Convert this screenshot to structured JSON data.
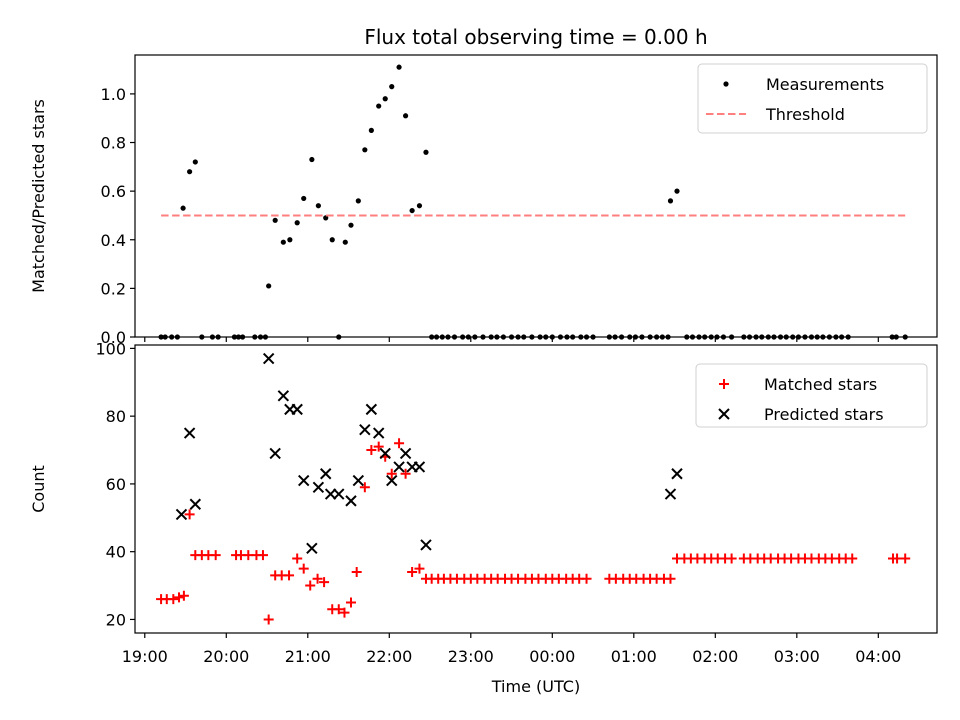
{
  "chart_data": [
    {
      "type": "scatter",
      "title": "Flux total observing time = 0.00 h",
      "ylabel": "Matched/Predicted stars",
      "xlabel": "",
      "xlim": [
        18.88,
        28.72
      ],
      "ylim": [
        0,
        1.16
      ],
      "x_unit": "hours after 00:00 of first night (UTC)",
      "yticks": [
        0.0,
        0.2,
        0.4,
        0.6,
        0.8,
        1.0
      ],
      "ytick_labels": [
        "0.0",
        "0.2",
        "0.4",
        "0.6",
        "0.8",
        "1.0"
      ],
      "legend_position": "upper-right",
      "series": [
        {
          "name": "Measurements",
          "marker": "dot",
          "color": "#000000",
          "points": [
            [
              19.2,
              0
            ],
            [
              19.25,
              0
            ],
            [
              19.33,
              0
            ],
            [
              19.4,
              0
            ],
            [
              19.47,
              0.53
            ],
            [
              19.55,
              0.68
            ],
            [
              19.62,
              0.72
            ],
            [
              19.7,
              0
            ],
            [
              19.83,
              0
            ],
            [
              19.9,
              0
            ],
            [
              20.1,
              0
            ],
            [
              20.15,
              0
            ],
            [
              20.2,
              0
            ],
            [
              20.35,
              0
            ],
            [
              20.42,
              0
            ],
            [
              20.48,
              0
            ],
            [
              20.52,
              0.21
            ],
            [
              20.6,
              0.48
            ],
            [
              20.7,
              0.39
            ],
            [
              20.78,
              0.4
            ],
            [
              20.87,
              0.47
            ],
            [
              20.95,
              0.57
            ],
            [
              21.05,
              0.73
            ],
            [
              21.13,
              0.54
            ],
            [
              21.22,
              0.49
            ],
            [
              21.3,
              0.4
            ],
            [
              21.38,
              0
            ],
            [
              21.46,
              0.39
            ],
            [
              21.53,
              0.46
            ],
            [
              21.62,
              0.56
            ],
            [
              21.7,
              0.77
            ],
            [
              21.78,
              0.85
            ],
            [
              21.87,
              0.95
            ],
            [
              21.95,
              0.98
            ],
            [
              22.03,
              1.03
            ],
            [
              22.12,
              1.11
            ],
            [
              22.2,
              0.91
            ],
            [
              22.28,
              0.52
            ],
            [
              22.37,
              0.54
            ],
            [
              22.45,
              0.76
            ],
            [
              22.52,
              0
            ],
            [
              22.58,
              0
            ],
            [
              22.65,
              0
            ],
            [
              22.72,
              0
            ],
            [
              22.8,
              0
            ],
            [
              22.9,
              0
            ],
            [
              22.97,
              0
            ],
            [
              23.05,
              0
            ],
            [
              23.15,
              0
            ],
            [
              23.25,
              0
            ],
            [
              23.32,
              0
            ],
            [
              23.4,
              0
            ],
            [
              23.5,
              0
            ],
            [
              23.58,
              0
            ],
            [
              23.65,
              0
            ],
            [
              23.75,
              0
            ],
            [
              23.85,
              0
            ],
            [
              23.92,
              0
            ],
            [
              24.0,
              0
            ],
            [
              24.1,
              0
            ],
            [
              24.18,
              0
            ],
            [
              24.25,
              0
            ],
            [
              24.35,
              0
            ],
            [
              24.42,
              0
            ],
            [
              24.5,
              0
            ],
            [
              24.7,
              0
            ],
            [
              24.77,
              0
            ],
            [
              24.85,
              0
            ],
            [
              24.95,
              0
            ],
            [
              25.02,
              0
            ],
            [
              25.1,
              0
            ],
            [
              25.2,
              0
            ],
            [
              25.28,
              0
            ],
            [
              25.35,
              0
            ],
            [
              25.42,
              0
            ],
            [
              25.45,
              0.56
            ],
            [
              25.53,
              0.6
            ],
            [
              25.65,
              0
            ],
            [
              25.72,
              0
            ],
            [
              25.8,
              0
            ],
            [
              25.87,
              0
            ],
            [
              25.95,
              0
            ],
            [
              26.02,
              0
            ],
            [
              26.1,
              0
            ],
            [
              26.2,
              0
            ],
            [
              26.35,
              0
            ],
            [
              26.42,
              0
            ],
            [
              26.5,
              0
            ],
            [
              26.57,
              0
            ],
            [
              26.65,
              0
            ],
            [
              26.72,
              0
            ],
            [
              26.8,
              0
            ],
            [
              26.87,
              0
            ],
            [
              26.95,
              0
            ],
            [
              27.02,
              0
            ],
            [
              27.1,
              0
            ],
            [
              27.18,
              0
            ],
            [
              27.25,
              0
            ],
            [
              27.32,
              0
            ],
            [
              27.4,
              0
            ],
            [
              27.48,
              0
            ],
            [
              27.55,
              0
            ],
            [
              27.63,
              0
            ],
            [
              28.17,
              0
            ],
            [
              28.22,
              0
            ],
            [
              28.33,
              0
            ]
          ]
        },
        {
          "name": "Threshold",
          "marker": "dashed-line",
          "color": "#ff7f7f",
          "points": [
            [
              19.2,
              0.5
            ],
            [
              28.33,
              0.5
            ]
          ]
        }
      ]
    },
    {
      "type": "scatter",
      "title": "",
      "ylabel": "Count",
      "xlabel": "Time (UTC)",
      "xlim": [
        18.88,
        28.72
      ],
      "ylim": [
        16,
        101
      ],
      "x_unit": "hours after 00:00 of first night (UTC)",
      "xticks": [
        19,
        20,
        21,
        22,
        23,
        24,
        25,
        26,
        27,
        28
      ],
      "xtick_labels": [
        "19:00",
        "20:00",
        "21:00",
        "22:00",
        "23:00",
        "00:00",
        "01:00",
        "02:00",
        "03:00",
        "04:00"
      ],
      "yticks": [
        20,
        40,
        60,
        80,
        100
      ],
      "ytick_labels": [
        "20",
        "40",
        "60",
        "80",
        "100"
      ],
      "legend_position": "upper-right",
      "series": [
        {
          "name": "Matched stars",
          "marker": "plus",
          "color": "#ff0000",
          "points": [
            [
              19.2,
              26
            ],
            [
              19.27,
              26
            ],
            [
              19.35,
              26
            ],
            [
              19.42,
              26.5
            ],
            [
              19.48,
              27
            ],
            [
              19.55,
              51
            ],
            [
              19.62,
              39
            ],
            [
              19.7,
              39
            ],
            [
              19.78,
              39
            ],
            [
              19.87,
              39
            ],
            [
              20.12,
              39
            ],
            [
              20.18,
              39
            ],
            [
              20.27,
              39
            ],
            [
              20.37,
              39
            ],
            [
              20.45,
              39
            ],
            [
              20.52,
              20
            ],
            [
              20.6,
              33
            ],
            [
              20.68,
              33
            ],
            [
              20.77,
              33
            ],
            [
              20.87,
              38
            ],
            [
              20.95,
              35
            ],
            [
              21.03,
              30
            ],
            [
              21.12,
              32
            ],
            [
              21.2,
              31
            ],
            [
              21.3,
              23
            ],
            [
              21.38,
              23
            ],
            [
              21.45,
              22
            ],
            [
              21.53,
              25
            ],
            [
              21.6,
              34
            ],
            [
              21.7,
              59
            ],
            [
              21.78,
              70
            ],
            [
              21.87,
              71
            ],
            [
              21.95,
              68
            ],
            [
              22.03,
              63
            ],
            [
              22.12,
              72
            ],
            [
              22.2,
              63
            ],
            [
              22.28,
              34
            ],
            [
              22.37,
              35
            ],
            [
              22.45,
              32
            ],
            [
              22.52,
              32
            ],
            [
              22.6,
              32
            ],
            [
              22.67,
              32
            ],
            [
              22.75,
              32
            ],
            [
              22.83,
              32
            ],
            [
              22.92,
              32
            ],
            [
              23.0,
              32
            ],
            [
              23.08,
              32
            ],
            [
              23.17,
              32
            ],
            [
              23.25,
              32
            ],
            [
              23.33,
              32
            ],
            [
              23.42,
              32
            ],
            [
              23.5,
              32
            ],
            [
              23.58,
              32
            ],
            [
              23.67,
              32
            ],
            [
              23.75,
              32
            ],
            [
              23.83,
              32
            ],
            [
              23.92,
              32
            ],
            [
              24.0,
              32
            ],
            [
              24.08,
              32
            ],
            [
              24.17,
              32
            ],
            [
              24.25,
              32
            ],
            [
              24.33,
              32
            ],
            [
              24.42,
              32
            ],
            [
              24.7,
              32
            ],
            [
              24.78,
              32
            ],
            [
              24.87,
              32
            ],
            [
              24.95,
              32
            ],
            [
              25.03,
              32
            ],
            [
              25.12,
              32
            ],
            [
              25.2,
              32
            ],
            [
              25.28,
              32
            ],
            [
              25.37,
              32
            ],
            [
              25.45,
              32
            ],
            [
              25.53,
              38
            ],
            [
              25.62,
              38
            ],
            [
              25.7,
              38
            ],
            [
              25.78,
              38
            ],
            [
              25.87,
              38
            ],
            [
              25.95,
              38
            ],
            [
              26.03,
              38
            ],
            [
              26.12,
              38
            ],
            [
              26.2,
              38
            ],
            [
              26.35,
              38
            ],
            [
              26.43,
              38
            ],
            [
              26.52,
              38
            ],
            [
              26.6,
              38
            ],
            [
              26.68,
              38
            ],
            [
              26.77,
              38
            ],
            [
              26.85,
              38
            ],
            [
              26.93,
              38
            ],
            [
              27.02,
              38
            ],
            [
              27.1,
              38
            ],
            [
              27.18,
              38
            ],
            [
              27.27,
              38
            ],
            [
              27.35,
              38
            ],
            [
              27.43,
              38
            ],
            [
              27.52,
              38
            ],
            [
              27.6,
              38
            ],
            [
              27.68,
              38
            ],
            [
              28.18,
              38
            ],
            [
              28.23,
              38
            ],
            [
              28.33,
              38
            ]
          ]
        },
        {
          "name": "Predicted stars",
          "marker": "x",
          "color": "#000000",
          "points": [
            [
              19.45,
              51
            ],
            [
              19.55,
              75
            ],
            [
              19.62,
              54
            ],
            [
              20.52,
              97
            ],
            [
              20.6,
              69
            ],
            [
              20.7,
              86
            ],
            [
              20.78,
              82
            ],
            [
              20.87,
              82
            ],
            [
              20.95,
              61
            ],
            [
              21.05,
              41
            ],
            [
              21.13,
              59
            ],
            [
              21.22,
              63
            ],
            [
              21.28,
              57
            ],
            [
              21.38,
              57
            ],
            [
              21.53,
              55
            ],
            [
              21.62,
              61
            ],
            [
              21.7,
              76
            ],
            [
              21.78,
              82
            ],
            [
              21.87,
              75
            ],
            [
              21.95,
              69
            ],
            [
              22.03,
              61
            ],
            [
              22.12,
              65
            ],
            [
              22.2,
              69
            ],
            [
              22.28,
              65
            ],
            [
              22.37,
              65
            ],
            [
              22.45,
              42
            ],
            [
              25.45,
              57
            ],
            [
              25.53,
              63
            ]
          ]
        }
      ]
    }
  ]
}
